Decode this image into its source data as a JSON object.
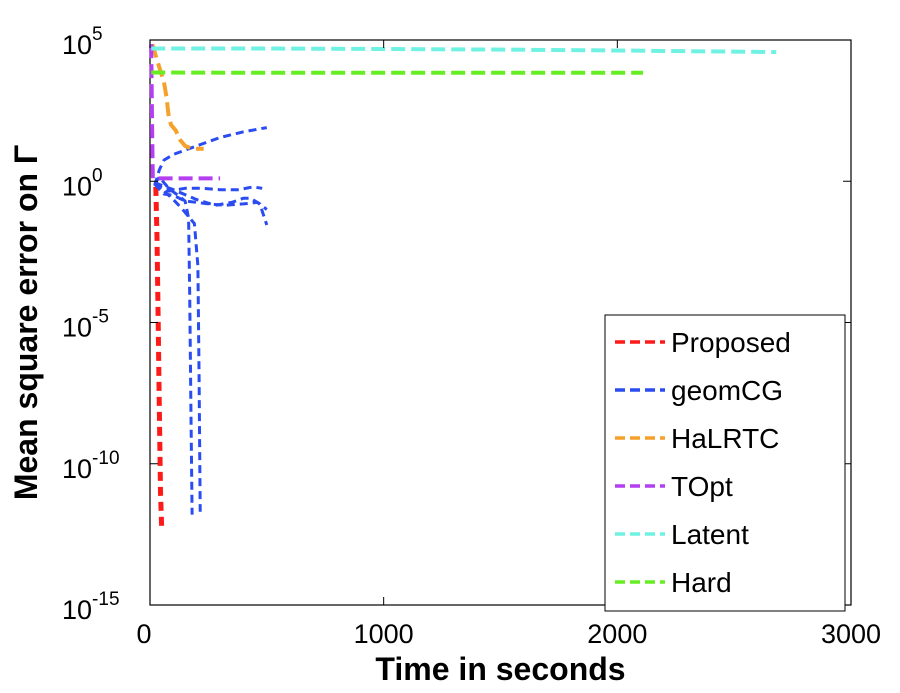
{
  "chart_data": {
    "type": "line",
    "xlabel": "Time in seconds",
    "ylabel": "Mean square error on Γ",
    "xlim": [
      0,
      3000
    ],
    "ylim_exponent": [
      -15,
      5
    ],
    "yscale": "log",
    "grid": false,
    "legend_position": "bottom-right",
    "x_ticks": [
      "0",
      "1000",
      "2000",
      "3000"
    ],
    "y_ticks": [
      {
        "base": "10",
        "exp": "5"
      },
      {
        "base": "10",
        "exp": "0"
      },
      {
        "base": "10",
        "exp": "-5"
      },
      {
        "base": "10",
        "exp": "-10"
      },
      {
        "base": "10",
        "exp": "-15"
      }
    ],
    "series": [
      {
        "name": "Proposed",
        "color": "#ff1a1a",
        "width": 5,
        "dash": "9,6",
        "lines": [
          [
            [
              25,
              -0.2
            ],
            [
              30,
              -2.0
            ],
            [
              35,
              -5.0
            ],
            [
              40,
              -8.0
            ],
            [
              45,
              -11.0
            ],
            [
              50,
              -12.3
            ]
          ]
        ]
      },
      {
        "name": "geomCG",
        "color": "#2a4cf0",
        "width": 3,
        "dash": "8,5",
        "lines": [
          [
            [
              20,
              -0.15
            ],
            [
              40,
              0.4
            ],
            [
              60,
              0.75
            ],
            [
              100,
              0.95
            ],
            [
              200,
              1.25
            ],
            [
              300,
              1.55
            ],
            [
              400,
              1.75
            ],
            [
              500,
              1.9
            ]
          ],
          [
            [
              20,
              -0.1
            ],
            [
              40,
              0.15
            ],
            [
              60,
              -0.05
            ],
            [
              80,
              -0.25
            ],
            [
              120,
              -0.5
            ],
            [
              150,
              -0.7
            ],
            [
              165,
              -1.3
            ],
            [
              170,
              -4.0
            ],
            [
              175,
              -8.0
            ],
            [
              180,
              -11.8
            ]
          ],
          [
            [
              20,
              -0.05
            ],
            [
              40,
              -0.15
            ],
            [
              60,
              -0.35
            ],
            [
              100,
              -0.65
            ],
            [
              140,
              -1.0
            ],
            [
              190,
              -1.5
            ],
            [
              205,
              -3.0
            ],
            [
              210,
              -7.0
            ],
            [
              215,
              -11.7
            ]
          ],
          [
            [
              20,
              -0.1
            ],
            [
              60,
              -0.45
            ],
            [
              100,
              -0.5
            ],
            [
              150,
              -0.7
            ],
            [
              200,
              -0.75
            ],
            [
              250,
              -0.8
            ],
            [
              320,
              -0.85
            ],
            [
              400,
              -0.8
            ],
            [
              460,
              -0.75
            ],
            [
              500,
              -1.0
            ]
          ],
          [
            [
              20,
              -0.1
            ],
            [
              80,
              -0.35
            ],
            [
              150,
              -0.25
            ],
            [
              220,
              -0.25
            ],
            [
              300,
              -0.3
            ],
            [
              380,
              -0.3
            ],
            [
              440,
              -0.2
            ],
            [
              480,
              -0.25
            ]
          ],
          [
            [
              20,
              -0.05
            ],
            [
              100,
              -0.3
            ],
            [
              200,
              -0.65
            ],
            [
              280,
              -0.85
            ],
            [
              350,
              -0.75
            ],
            [
              400,
              -0.6
            ],
            [
              430,
              -0.6
            ],
            [
              470,
              -0.8
            ],
            [
              500,
              -1.55
            ]
          ]
        ]
      },
      {
        "name": "HaLRTC",
        "color": "#f5a12c",
        "width": 4,
        "dash": "14,6",
        "lines": [
          [
            [
              10,
              4.85
            ],
            [
              30,
              4.3
            ],
            [
              45,
              3.9
            ],
            [
              60,
              3.5
            ],
            [
              70,
              3.0
            ],
            [
              80,
              2.3
            ],
            [
              90,
              2.0
            ],
            [
              110,
              1.8
            ],
            [
              130,
              1.45
            ],
            [
              150,
              1.25
            ],
            [
              180,
              1.15
            ],
            [
              230,
              1.15
            ]
          ]
        ]
      },
      {
        "name": "TOpt",
        "color": "#b43ef0",
        "width": 4,
        "dash": "14,6",
        "lines": [
          [
            [
              5,
              4.85
            ],
            [
              8,
              2.5
            ],
            [
              12,
              0.1
            ],
            [
              20,
              0.1
            ],
            [
              60,
              0.1
            ],
            [
              150,
              0.1
            ],
            [
              250,
              0.1
            ],
            [
              300,
              0.1
            ]
          ]
        ]
      },
      {
        "name": "Latent",
        "color": "#6ff2e2",
        "width": 4,
        "dash": "14,6",
        "lines": [
          [
            [
              5,
              4.7
            ],
            [
              500,
              4.7
            ],
            [
              1000,
              4.68
            ],
            [
              1500,
              4.66
            ],
            [
              2000,
              4.63
            ],
            [
              2500,
              4.59
            ],
            [
              2680,
              4.57
            ]
          ]
        ]
      },
      {
        "name": "Hard",
        "color": "#66ee22",
        "width": 4,
        "dash": "14,6",
        "lines": [
          [
            [
              5,
              3.85
            ],
            [
              500,
              3.84
            ],
            [
              1000,
              3.84
            ],
            [
              1500,
              3.84
            ],
            [
              2000,
              3.84
            ],
            [
              2110,
              3.84
            ]
          ]
        ]
      }
    ]
  }
}
